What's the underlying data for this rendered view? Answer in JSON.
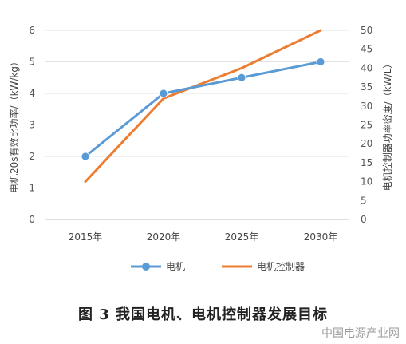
{
  "chart_data": {
    "type": "line",
    "categories": [
      "2015年",
      "2020年",
      "2025年",
      "2030年"
    ],
    "series": [
      {
        "name": "电机",
        "axis": "left",
        "values": [
          2,
          4,
          4.5,
          5
        ],
        "color": "#5b9bd5",
        "marker": "circle"
      },
      {
        "name": "电机控制器",
        "axis": "right",
        "values": [
          10,
          32,
          40,
          50
        ],
        "color": "#ed7d31",
        "marker": "none"
      }
    ],
    "ylabel": "电机20s有效比功率/（kW/kg）",
    "y2label": "电机控制器功率密度/（kW/L）",
    "ylim": [
      0,
      6
    ],
    "y2lim": [
      0,
      50
    ],
    "yticks": [
      0,
      1,
      2,
      3,
      4,
      5,
      6
    ],
    "y2ticks": [
      0,
      5,
      10,
      15,
      20,
      25,
      30,
      35,
      40,
      45,
      50
    ],
    "grid": true,
    "legend": "bottom"
  },
  "caption": "图 3 我国电机、电机控制器发展目标",
  "watermark": "中国电源产业网"
}
